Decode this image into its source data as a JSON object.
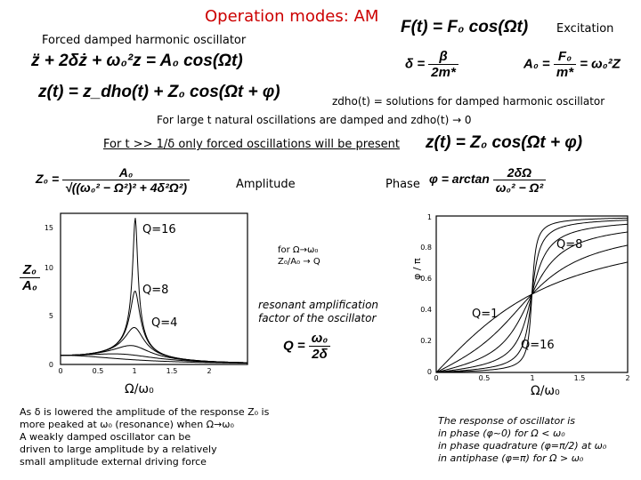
{
  "title": "Operation modes: AM",
  "subtitle": "Forced damped harmonic oscillator",
  "excitation_label": "Excitation",
  "equations": {
    "excitation": "F(t) = F₀ cos(Ωt)",
    "ode": "z̈ + 2δż + ω₀²z = A₀ cos(Ωt)",
    "solution": "z(t) = z_dho(t) + Z₀ cos(Ωt + φ)",
    "delta_lhs": "δ =",
    "delta_num": "β",
    "delta_den": "2m*",
    "a0_lhs": "A₀ =",
    "a0_num": "F₀",
    "a0_den": "m*",
    "a0_rhs": "= ω₀²Z",
    "steady": "z(t) = Z₀ cos(Ωt + φ)",
    "amp_lhs": "Z₀ =",
    "amp_num": "A₀",
    "amp_den": "√((ω₀² − Ω²)² + 4δ²Ω²)",
    "phase_lhs": "φ = arctan",
    "phase_num": "2δΩ",
    "phase_den": "ω₀² − Ω²",
    "q_lhs": "Q =",
    "q_num": "ω₀",
    "q_den": "2δ"
  },
  "notes": {
    "zdho": "zdho(t) = solutions for damped harmonic oscillator",
    "large_t": "For large t natural oscillations are damped and zdho(t) → 0",
    "forced_only": "For t >> 1/δ only forced oscillations will be present",
    "amplitude": "Amplitude",
    "phase": "Phase",
    "resonant": "resonant amplification factor of the oscillator",
    "for_omega": "for Ω→ω₀",
    "z_ratio": "Z₀/A₀ → Q",
    "bottom_left": [
      "As δ is lowered the amplitude of the response Z₀ is",
      "more peaked at ω₀ (resonance) when Ω→ω₀",
      "A weakly damped oscillator can be",
      "driven to large amplitude by a relatively",
      "small amplitude external driving force"
    ],
    "bottom_right": [
      "The response of oscillator is",
      "in phase (φ~0) for Ω < ω₀",
      "in phase quadrature (φ=π/2) at ω₀",
      "in antiphase (φ=π) for Ω > ω₀"
    ]
  },
  "left_plot": {
    "ylabel_num": "Z₀",
    "ylabel_den": "A₀",
    "xlabel": "Ω/ω₀",
    "yticks": [
      "0",
      "5",
      "10",
      "15"
    ],
    "xticks": [
      "0",
      "0.5",
      "1",
      "1.5",
      "2"
    ],
    "curve_labels": [
      "Q=16",
      "Q=8",
      "Q=4"
    ]
  },
  "right_plot": {
    "ylabel": "φ / π",
    "xlabel": "Ω/ω₀",
    "yticks": [
      "0",
      "0.2",
      "0.4",
      "0.6",
      "0.8",
      "1"
    ],
    "xticks": [
      "0",
      "0.5",
      "1",
      "1.5",
      "2"
    ],
    "curve_labels": [
      "Q=8",
      "Q=1",
      "Q=16"
    ]
  },
  "colors": {
    "title": "#cc0000",
    "ink": "#000000",
    "background": "#ffffff"
  }
}
